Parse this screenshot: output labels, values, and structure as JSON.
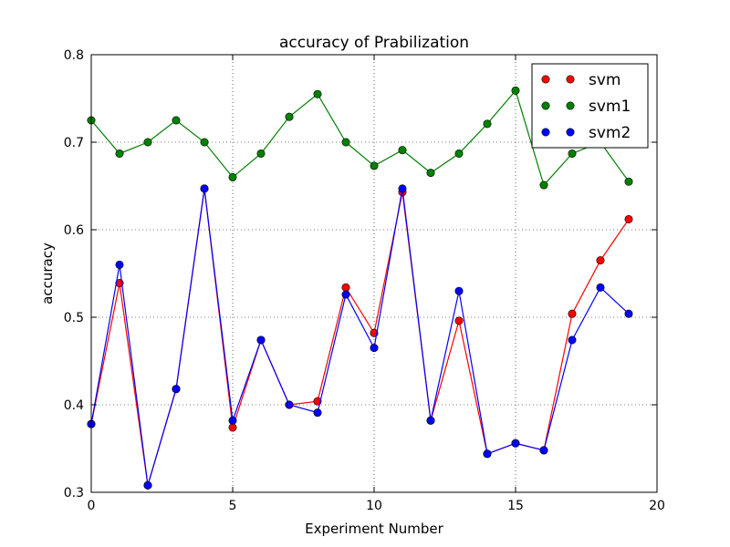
{
  "chart_data": {
    "type": "line",
    "title": "accuracy of Prabilization",
    "xlabel": "Experiment Number",
    "ylabel": "accuracy",
    "xlim": [
      0,
      20
    ],
    "ylim": [
      0.3,
      0.8
    ],
    "xticks": [
      "0",
      "5",
      "10",
      "15",
      "20"
    ],
    "yticks": [
      "0.3",
      "0.4",
      "0.5",
      "0.6",
      "0.7",
      "0.8"
    ],
    "grid": true,
    "legend_position": "top-right",
    "x": [
      0,
      1,
      2,
      3,
      4,
      5,
      6,
      7,
      8,
      9,
      10,
      11,
      12,
      13,
      14,
      15,
      16,
      17,
      18,
      19
    ],
    "series": [
      {
        "name": "svm",
        "color": "#ff0000",
        "values": [
          0.378,
          0.539,
          0.308,
          0.418,
          0.647,
          0.374,
          0.474,
          0.4,
          0.404,
          0.534,
          0.482,
          0.643,
          0.382,
          0.496,
          0.344,
          0.356,
          0.348,
          0.504,
          0.565,
          0.612
        ]
      },
      {
        "name": "svm1",
        "color": "#008000",
        "values": [
          0.725,
          0.687,
          0.7,
          0.725,
          0.7,
          0.66,
          0.687,
          0.729,
          0.755,
          0.7,
          0.673,
          0.691,
          0.665,
          0.687,
          0.721,
          0.759,
          0.651,
          0.687,
          0.7,
          0.655
        ]
      },
      {
        "name": "svm2",
        "color": "#0000ff",
        "values": [
          0.378,
          0.56,
          0.308,
          0.418,
          0.647,
          0.382,
          0.474,
          0.4,
          0.391,
          0.526,
          0.465,
          0.647,
          0.382,
          0.53,
          0.344,
          0.356,
          0.348,
          0.474,
          0.534,
          0.504
        ]
      }
    ]
  }
}
